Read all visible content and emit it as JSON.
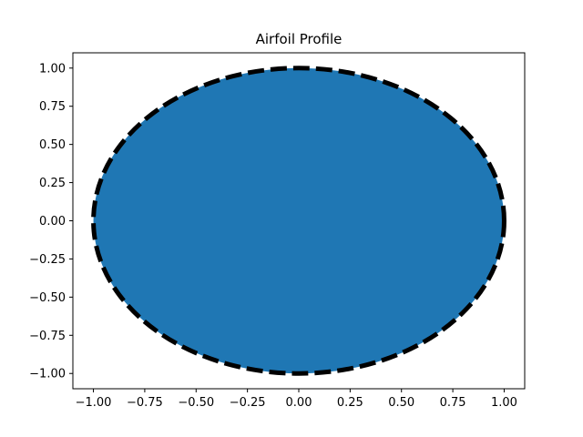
{
  "chart_data": {
    "type": "area",
    "title": "Airfoil Profile",
    "xlabel": "",
    "ylabel": "",
    "xlim": [
      -1.1,
      1.1
    ],
    "ylim": [
      -1.1,
      1.1
    ],
    "grid": false,
    "x_ticks": [
      -1.0,
      -0.75,
      -0.5,
      -0.25,
      0.0,
      0.25,
      0.5,
      0.75,
      1.0
    ],
    "x_tick_labels": [
      "−1.00",
      "−0.75",
      "−0.50",
      "−0.25",
      "0.00",
      "0.25",
      "0.50",
      "0.75",
      "1.00"
    ],
    "y_ticks": [
      -1.0,
      -0.75,
      -0.5,
      -0.25,
      0.0,
      0.25,
      0.5,
      0.75,
      1.0
    ],
    "y_tick_labels": [
      "−1.00",
      "−0.75",
      "−0.50",
      "−0.25",
      "0.00",
      "0.25",
      "0.50",
      "0.75",
      "1.00"
    ],
    "series": [
      {
        "kind": "filled-shape",
        "shape": "circle",
        "center": [
          0,
          0
        ],
        "radius": 1.0,
        "fill_color": "#1f77b4",
        "outline_color": "#000000",
        "outline_style": "dashed"
      }
    ]
  }
}
